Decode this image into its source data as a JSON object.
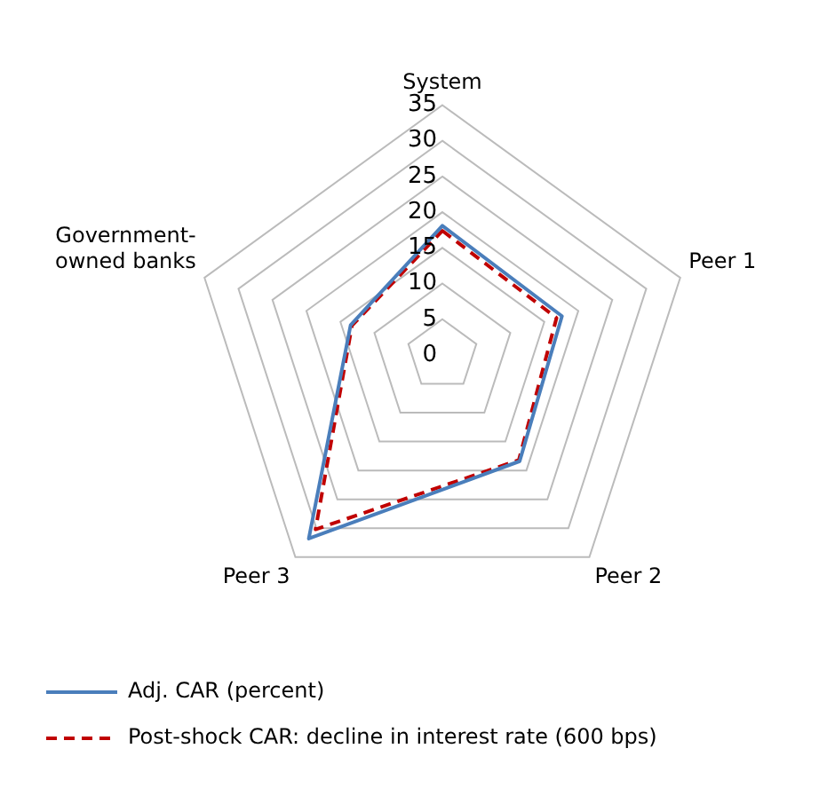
{
  "chart_data": {
    "type": "radar",
    "categories": [
      "System",
      "Peer 1",
      "Peer 2",
      "Peer 3",
      "Government-owned banks"
    ],
    "series": [
      {
        "name": "Adj. CAR (percent)",
        "color": "#4a7ebb",
        "values": [
          18.1,
          17.6,
          18.4,
          31.8,
          13.5
        ],
        "line_style": "solid"
      },
      {
        "name": "Post-shock CAR: decline in interest rate (600 bps)",
        "color": "#c00000",
        "values": [
          17.4,
          16.8,
          18.2,
          30.2,
          13.3
        ],
        "line_style": "dashed"
      }
    ],
    "ylim": [
      0,
      35
    ],
    "yticks": [
      0,
      5,
      10,
      15,
      20,
      25,
      30,
      35
    ],
    "grid": true,
    "legend": "bottom",
    "marker": "none"
  }
}
